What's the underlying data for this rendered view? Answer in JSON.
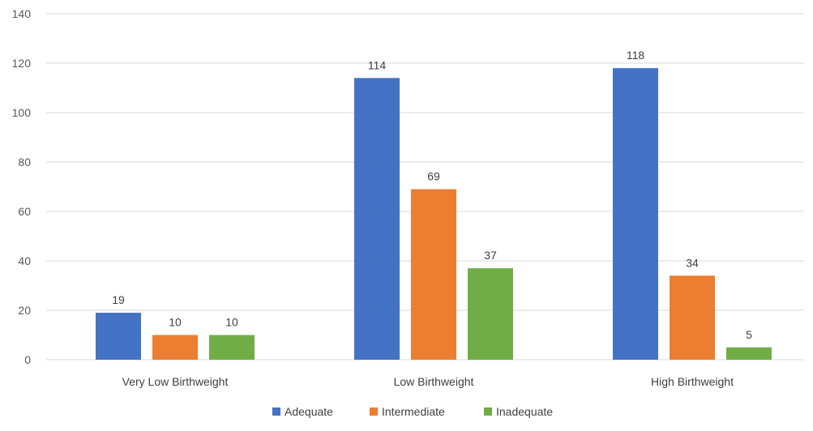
{
  "chart_data": {
    "type": "bar",
    "categories": [
      "Very Low Birthweight",
      "Low Birthweight",
      "High Birthweight"
    ],
    "series": [
      {
        "name": "Adequate",
        "color": "#4472c4",
        "values": [
          19,
          114,
          118
        ]
      },
      {
        "name": "Intermediate",
        "color": "#ed7d31",
        "values": [
          10,
          69,
          34
        ]
      },
      {
        "name": "Inadequate",
        "color": "#70ad47",
        "values": [
          10,
          37,
          5
        ]
      }
    ],
    "yticks": [
      0,
      20,
      40,
      60,
      80,
      100,
      120,
      140
    ],
    "ylim": [
      0,
      140
    ],
    "grid": true,
    "legend_position": "bottom",
    "data_labels": true
  }
}
